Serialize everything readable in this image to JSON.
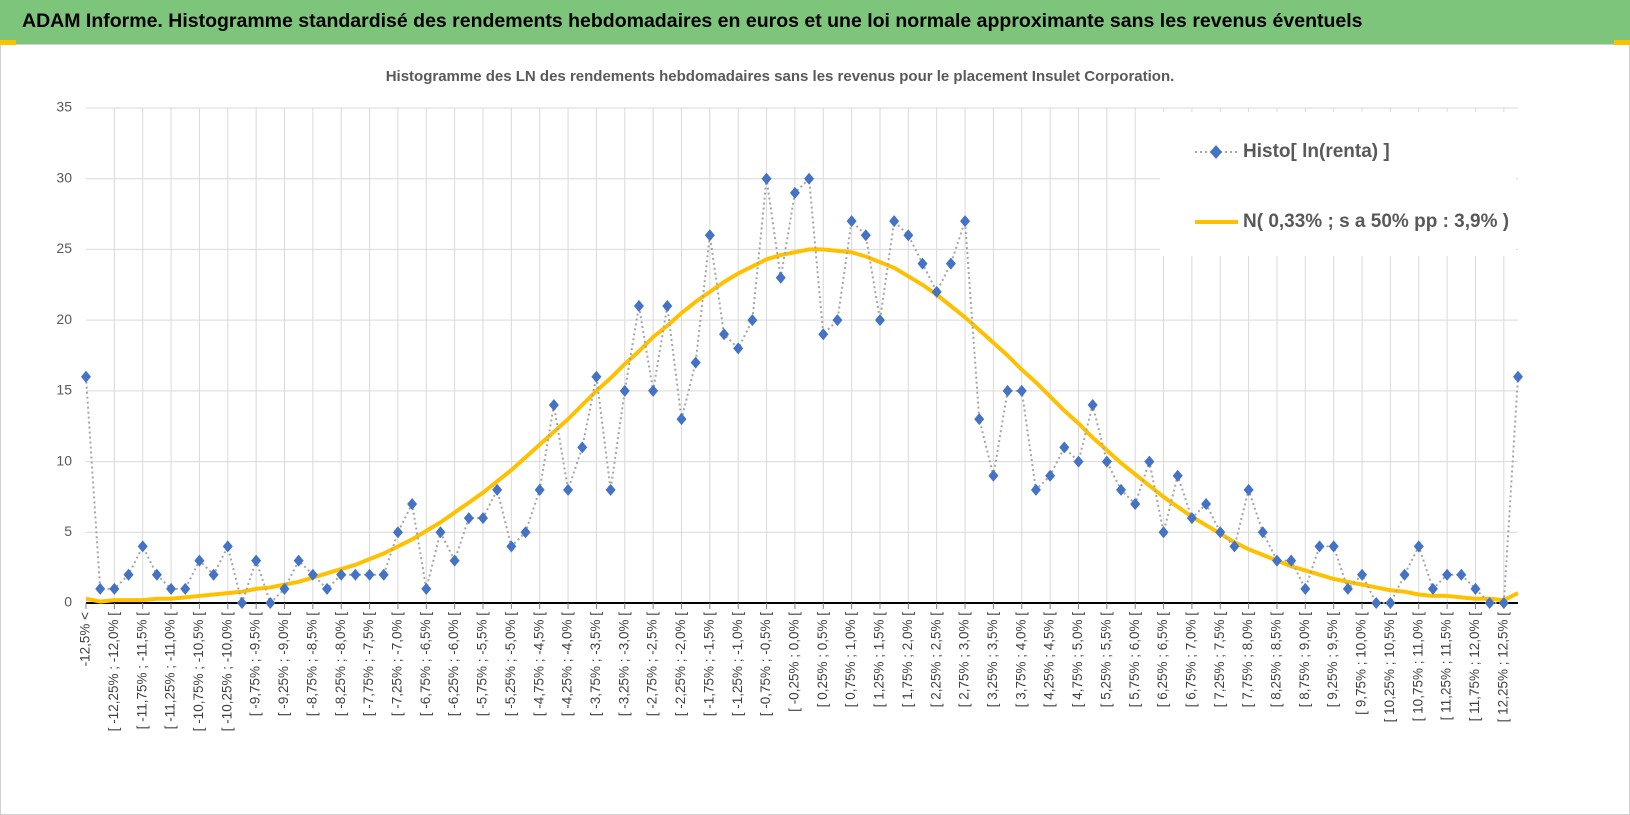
{
  "chart_data": {
    "type": "line",
    "title": "ADAM Informe. Histogramme standardisé des rendements hebdomadaires en euros et une loi normale approximante sans les revenus éventuels",
    "subtitle": "Histogramme des LN des rendements hebdomadaires sans les revenus pour le placement Insulet Corporation.",
    "categories": [
      "-12,5% <",
      null,
      "[ -12,25% ; -12,0% [",
      null,
      "[ -11,75% ; -11,5% [",
      null,
      "[ -11,25% ; -11,0% [",
      null,
      "[ -10,75% ; -10,5% [",
      null,
      "[ -10,25% ; -10,0% [",
      null,
      "[ -9,75% ; -9,5% [",
      null,
      "[ -9,25% ; -9,0% [",
      null,
      "[ -8,75% ; -8,5% [",
      null,
      "[ -8,25% ; -8,0% [",
      null,
      "[ -7,75% ; -7,5% [",
      null,
      "[ -7,25% ; -7,0% [",
      null,
      "[ -6,75% ; -6,5% [",
      null,
      "[ -6,25% ; -6,0% [",
      null,
      "[ -5,75% ; -5,5% [",
      null,
      "[ -5,25% ; -5,0% [",
      null,
      "[ -4,75% ; -4,5% [",
      null,
      "[ -4,25% ; -4,0% [",
      null,
      "[ -3,75% ; -3,5% [",
      null,
      "[ -3,25% ; -3,0% [",
      null,
      "[ -2,75% ; -2,5% [",
      null,
      "[ -2,25% ; -2,0% [",
      null,
      "[ -1,75% ; -1,5% [",
      null,
      "[ -1,25% ; -1,0% [",
      null,
      "[ -0,75% ; -0,5% [",
      null,
      "[ -0,25% ; 0,0% [",
      null,
      "[ 0,25% ; 0,5% [",
      null,
      "[ 0,75% ; 1,0% [",
      null,
      "[ 1,25% ; 1,5% [",
      null,
      "[ 1,75% ; 2,0% [",
      null,
      "[ 2,25% ; 2,5% [",
      null,
      "[ 2,75% ; 3,0% [",
      null,
      "[ 3,25% ; 3,5% [",
      null,
      "[ 3,75% ; 4,0% [",
      null,
      "[ 4,25% ; 4,5% [",
      null,
      "[ 4,75% ; 5,0% [",
      null,
      "[ 5,25% ; 5,5% [",
      null,
      "[ 5,75% ; 6,0% [",
      null,
      "[ 6,25% ; 6,5% [",
      null,
      "[ 6,75% ; 7,0% [",
      null,
      "[ 7,25% ; 7,5% [",
      null,
      "[ 7,75% ; 8,0% [",
      null,
      "[ 8,25% ; 8,5% [",
      null,
      "[ 8,75% ; 9,0% [",
      null,
      "[ 9,25% ; 9,5% [",
      null,
      "[ 9,75% ; 10,0% [",
      null,
      "[ 10,25% ; 10,5% [",
      null,
      "[ 10,75% ; 11,0% [",
      null,
      "[ 11,25% ; 11,5% [",
      null,
      "[ 11,75% ; 12,0% [",
      null,
      "[ 12,25% ; 12,5% [",
      null
    ],
    "series": [
      {
        "name": "Histo[ ln(renta) ]",
        "color": "#4472c4",
        "line_color": "#a6a6a6",
        "line_style": "dotted",
        "marker": "diamond",
        "values": [
          16,
          1,
          1,
          2,
          4,
          2,
          1,
          1,
          3,
          2,
          4,
          0,
          3,
          0,
          1,
          3,
          2,
          1,
          2,
          2,
          2,
          2,
          5,
          7,
          1,
          5,
          3,
          6,
          6,
          8,
          4,
          5,
          8,
          14,
          8,
          11,
          16,
          8,
          15,
          21,
          15,
          21,
          13,
          17,
          26,
          19,
          18,
          20,
          30,
          23,
          29,
          30,
          19,
          20,
          27,
          26,
          20,
          27,
          26,
          24,
          22,
          24,
          27,
          13,
          9,
          15,
          15,
          8,
          9,
          11,
          10,
          14,
          10,
          8,
          7,
          10,
          5,
          9,
          6,
          7,
          5,
          4,
          8,
          5,
          3,
          3,
          1,
          4,
          4,
          1,
          2,
          0,
          0,
          2,
          4,
          1,
          2,
          2,
          1,
          0,
          0,
          16
        ]
      },
      {
        "name": "N( 0,33% ; s a 50% pp : 3,9% )",
        "color": "#ffc000",
        "line_style": "solid",
        "marker": "none",
        "values": [
          0.3,
          0.1,
          0.2,
          0.2,
          0.2,
          0.3,
          0.3,
          0.4,
          0.5,
          0.6,
          0.7,
          0.8,
          1.0,
          1.1,
          1.3,
          1.5,
          1.8,
          2.1,
          2.4,
          2.7,
          3.1,
          3.5,
          4.0,
          4.5,
          5.1,
          5.7,
          6.4,
          7.1,
          7.8,
          8.6,
          9.4,
          10.3,
          11.2,
          12.1,
          13.0,
          14.0,
          15.0,
          15.9,
          16.9,
          17.8,
          18.8,
          19.6,
          20.5,
          21.3,
          22.0,
          22.7,
          23.3,
          23.8,
          24.3,
          24.6,
          24.8,
          25.0,
          25.0,
          24.9,
          24.8,
          24.5,
          24.1,
          23.7,
          23.1,
          22.5,
          21.8,
          21.0,
          20.2,
          19.3,
          18.4,
          17.5,
          16.5,
          15.6,
          14.6,
          13.6,
          12.7,
          11.7,
          10.8,
          9.9,
          9.1,
          8.3,
          7.5,
          6.8,
          6.1,
          5.5,
          4.9,
          4.3,
          3.8,
          3.4,
          3.0,
          2.6,
          2.3,
          2.0,
          1.7,
          1.5,
          1.3,
          1.1,
          0.9,
          0.8,
          0.6,
          0.5,
          0.5,
          0.4,
          0.3,
          0.3,
          0.2,
          0.7
        ]
      }
    ],
    "ylim": [
      0,
      35
    ],
    "yticks": [
      0,
      5,
      10,
      15,
      20,
      25,
      30,
      35
    ],
    "grid": true,
    "legend": "upper right"
  }
}
